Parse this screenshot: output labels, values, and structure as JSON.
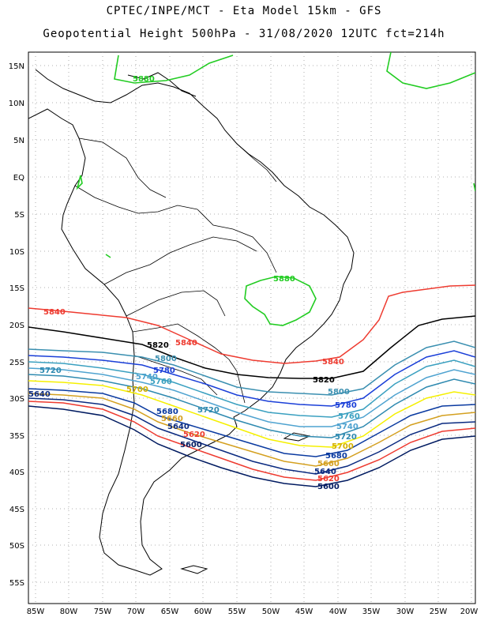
{
  "title_line1": "CPTEC/INPE/MCT -  Eta Model 15km - GFS",
  "title_line2": "Geopotential Height 500hPa - 31/08/2020 12UTC fct=214h",
  "lat_ticks": [
    "15N",
    "10N",
    "5N",
    "EQ",
    "5S",
    "10S",
    "15S",
    "20S",
    "25S",
    "30S",
    "35S",
    "40S",
    "45S",
    "50S",
    "55S"
  ],
  "lon_ticks": [
    "85W",
    "80W",
    "75W",
    "70W",
    "65W",
    "60W",
    "55W",
    "50W",
    "45W",
    "40W",
    "35W",
    "30W",
    "25W",
    "20W"
  ],
  "contours": [
    {
      "value": "5880",
      "color": "#22cc22"
    },
    {
      "value": "5840",
      "color": "#ee3b30"
    },
    {
      "value": "5820",
      "color": "#000000"
    },
    {
      "value": "5800",
      "color": "#3a8fb0"
    },
    {
      "value": "5780",
      "color": "#1a3fd8"
    },
    {
      "value": "5760",
      "color": "#3aa0c0"
    },
    {
      "value": "5740",
      "color": "#4fa3d0"
    },
    {
      "value": "5720",
      "color": "#2f8ab0"
    },
    {
      "value": "5700",
      "color": "#f5f000"
    },
    {
      "value": "5680",
      "color": "#0a3aa0"
    },
    {
      "value": "5660",
      "color": "#d4a020"
    },
    {
      "value": "5640",
      "color": "#0a2a80"
    },
    {
      "value": "5620",
      "color": "#ee3b30"
    },
    {
      "value": "5600",
      "color": "#001a60"
    }
  ]
}
